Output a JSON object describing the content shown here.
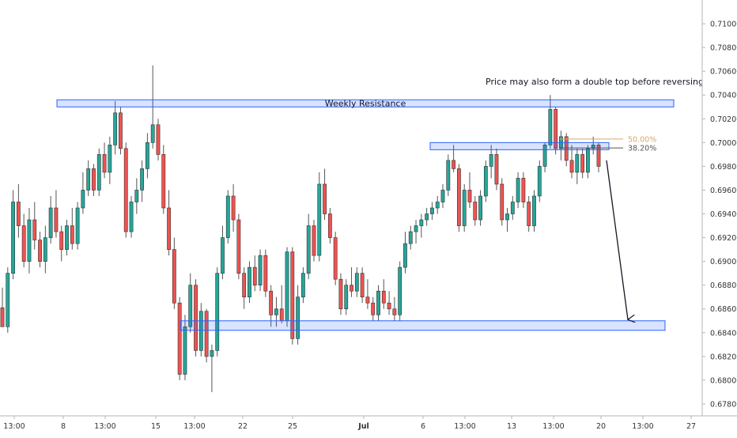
{
  "chart_data": {
    "type": "candlestick",
    "symbol": "",
    "y_axis": {
      "ylim": [
        0.677,
        0.712
      ],
      "ticks": [
        "0.71000",
        "0.70800",
        "0.70600",
        "0.70400",
        "0.70200",
        "0.70000",
        "0.69800",
        "0.69600",
        "0.69400",
        "0.69200",
        "0.69000",
        "0.68800",
        "0.68600",
        "0.68400",
        "0.68200",
        "0.68000",
        "0.67800"
      ]
    },
    "x_axis": {
      "ticks": [
        "13:00",
        "8",
        "13:00",
        "15",
        "13:00",
        "22",
        "25",
        "Jul",
        "6",
        "13:00",
        "13",
        "13:00",
        "20",
        "13:00",
        "27"
      ]
    },
    "zones": [
      {
        "label": "Weekly Resistance",
        "low": 0.703,
        "high": 0.7036
      },
      {
        "label": "",
        "low": 0.6994,
        "high": 0.7
      },
      {
        "label": "",
        "low": 0.6842,
        "high": 0.685
      }
    ],
    "fib_levels": [
      {
        "label": "50.00%",
        "value": 0.7003,
        "color": "#d6a868"
      },
      {
        "label": "38.20%",
        "value": 0.69955,
        "color": "#555555"
      }
    ],
    "annotations": [
      {
        "text": "Price may also form a double top before reversing"
      }
    ],
    "arrow": {
      "from_value": 0.6985,
      "to_value": 0.6851
    },
    "colors": {
      "bull": "#26a69a",
      "bear": "#ef5350",
      "zone": "#2962ff",
      "axis_text": "#333333"
    },
    "grid": false,
    "candles": [
      [
        0.6861,
        0.6878,
        0.6848,
        0.6845
      ],
      [
        0.6845,
        0.6895,
        0.684,
        0.689
      ],
      [
        0.689,
        0.696,
        0.6885,
        0.695
      ],
      [
        0.695,
        0.6965,
        0.692,
        0.693
      ],
      [
        0.693,
        0.694,
        0.6895,
        0.69
      ],
      [
        0.69,
        0.6945,
        0.689,
        0.6935
      ],
      [
        0.6935,
        0.695,
        0.691,
        0.6918
      ],
      [
        0.6918,
        0.6925,
        0.6895,
        0.69
      ],
      [
        0.69,
        0.693,
        0.689,
        0.692
      ],
      [
        0.692,
        0.6955,
        0.6915,
        0.6945
      ],
      [
        0.6945,
        0.696,
        0.692,
        0.6925
      ],
      [
        0.6925,
        0.693,
        0.69,
        0.691
      ],
      [
        0.691,
        0.6935,
        0.6905,
        0.693
      ],
      [
        0.693,
        0.6945,
        0.691,
        0.6915
      ],
      [
        0.6915,
        0.695,
        0.691,
        0.6945
      ],
      [
        0.6945,
        0.6975,
        0.694,
        0.696
      ],
      [
        0.696,
        0.6985,
        0.6955,
        0.6978
      ],
      [
        0.6978,
        0.6982,
        0.6955,
        0.696
      ],
      [
        0.696,
        0.6995,
        0.6955,
        0.699
      ],
      [
        0.699,
        0.7,
        0.697,
        0.6975
      ],
      [
        0.6975,
        0.7005,
        0.6965,
        0.6998
      ],
      [
        0.6998,
        0.7035,
        0.699,
        0.7025
      ],
      [
        0.7025,
        0.703,
        0.699,
        0.6995
      ],
      [
        0.6995,
        0.7,
        0.692,
        0.6925
      ],
      [
        0.6925,
        0.6955,
        0.692,
        0.695
      ],
      [
        0.695,
        0.697,
        0.694,
        0.696
      ],
      [
        0.696,
        0.6985,
        0.695,
        0.6978
      ],
      [
        0.6978,
        0.7008,
        0.697,
        0.7
      ],
      [
        0.7,
        0.7065,
        0.6995,
        0.7015
      ],
      [
        0.7015,
        0.702,
        0.6985,
        0.699
      ],
      [
        0.699,
        0.6998,
        0.694,
        0.6945
      ],
      [
        0.6945,
        0.696,
        0.6905,
        0.691
      ],
      [
        0.691,
        0.692,
        0.686,
        0.6865
      ],
      [
        0.6865,
        0.687,
        0.68,
        0.6805
      ],
      [
        0.6805,
        0.6855,
        0.68,
        0.6845
      ],
      [
        0.6845,
        0.689,
        0.684,
        0.688
      ],
      [
        0.688,
        0.6885,
        0.682,
        0.6825
      ],
      [
        0.6825,
        0.6865,
        0.682,
        0.6858
      ],
      [
        0.6858,
        0.686,
        0.6815,
        0.682
      ],
      [
        0.682,
        0.683,
        0.679,
        0.6825
      ],
      [
        0.6825,
        0.6895,
        0.682,
        0.689
      ],
      [
        0.689,
        0.693,
        0.6885,
        0.692
      ],
      [
        0.692,
        0.696,
        0.6915,
        0.6955
      ],
      [
        0.6955,
        0.6965,
        0.6925,
        0.6935
      ],
      [
        0.6935,
        0.694,
        0.6885,
        0.689
      ],
      [
        0.689,
        0.6895,
        0.686,
        0.687
      ],
      [
        0.687,
        0.69,
        0.6865,
        0.6895
      ],
      [
        0.6895,
        0.6905,
        0.6875,
        0.688
      ],
      [
        0.688,
        0.691,
        0.6875,
        0.6905
      ],
      [
        0.6905,
        0.691,
        0.687,
        0.6875
      ],
      [
        0.6875,
        0.688,
        0.6845,
        0.6855
      ],
      [
        0.6855,
        0.687,
        0.6845,
        0.686
      ],
      [
        0.686,
        0.688,
        0.6848,
        0.685
      ],
      [
        0.685,
        0.6912,
        0.6845,
        0.6908
      ],
      [
        0.6908,
        0.6912,
        0.683,
        0.6835
      ],
      [
        0.6835,
        0.688,
        0.683,
        0.687
      ],
      [
        0.687,
        0.6895,
        0.6865,
        0.689
      ],
      [
        0.689,
        0.694,
        0.6885,
        0.693
      ],
      [
        0.693,
        0.6935,
        0.69,
        0.6905
      ],
      [
        0.6905,
        0.6975,
        0.69,
        0.6965
      ],
      [
        0.6965,
        0.6978,
        0.6935,
        0.694
      ],
      [
        0.694,
        0.6945,
        0.6915,
        0.692
      ],
      [
        0.692,
        0.6925,
        0.688,
        0.6885
      ],
      [
        0.6885,
        0.689,
        0.6855,
        0.686
      ],
      [
        0.686,
        0.6885,
        0.6855,
        0.688
      ],
      [
        0.688,
        0.6895,
        0.687,
        0.6875
      ],
      [
        0.6875,
        0.6895,
        0.687,
        0.689
      ],
      [
        0.689,
        0.6895,
        0.6865,
        0.687
      ],
      [
        0.687,
        0.6885,
        0.686,
        0.6865
      ],
      [
        0.6865,
        0.687,
        0.685,
        0.6855
      ],
      [
        0.6855,
        0.688,
        0.685,
        0.6875
      ],
      [
        0.6875,
        0.6885,
        0.686,
        0.6865
      ],
      [
        0.6865,
        0.6875,
        0.6855,
        0.686
      ],
      [
        0.686,
        0.687,
        0.685,
        0.6855
      ],
      [
        0.6855,
        0.69,
        0.685,
        0.6895
      ],
      [
        0.6895,
        0.6925,
        0.689,
        0.6915
      ],
      [
        0.6915,
        0.693,
        0.691,
        0.6925
      ],
      [
        0.6925,
        0.6935,
        0.6915,
        0.693
      ],
      [
        0.693,
        0.694,
        0.692,
        0.6935
      ],
      [
        0.6935,
        0.6945,
        0.693,
        0.694
      ],
      [
        0.694,
        0.695,
        0.6935,
        0.6945
      ],
      [
        0.6945,
        0.6955,
        0.694,
        0.695
      ],
      [
        0.695,
        0.6965,
        0.6945,
        0.696
      ],
      [
        0.696,
        0.699,
        0.6955,
        0.6985
      ],
      [
        0.6985,
        0.6998,
        0.6975,
        0.6978
      ],
      [
        0.6978,
        0.6982,
        0.6925,
        0.693
      ],
      [
        0.693,
        0.6965,
        0.6925,
        0.696
      ],
      [
        0.696,
        0.6975,
        0.6945,
        0.695
      ],
      [
        0.695,
        0.6955,
        0.693,
        0.6935
      ],
      [
        0.6935,
        0.696,
        0.693,
        0.6955
      ],
      [
        0.6955,
        0.6985,
        0.695,
        0.698
      ],
      [
        0.698,
        0.6998,
        0.697,
        0.699
      ],
      [
        0.699,
        0.6995,
        0.696,
        0.6965
      ],
      [
        0.6965,
        0.697,
        0.693,
        0.6935
      ],
      [
        0.6935,
        0.6945,
        0.6925,
        0.694
      ],
      [
        0.694,
        0.6955,
        0.6935,
        0.695
      ],
      [
        0.695,
        0.6975,
        0.6945,
        0.697
      ],
      [
        0.697,
        0.6975,
        0.6945,
        0.695
      ],
      [
        0.695,
        0.6955,
        0.6925,
        0.693
      ],
      [
        0.693,
        0.696,
        0.6925,
        0.6955
      ],
      [
        0.6955,
        0.6985,
        0.695,
        0.698
      ],
      [
        0.698,
        0.7,
        0.6975,
        0.6998
      ],
      [
        0.6998,
        0.704,
        0.6995,
        0.7028
      ],
      [
        0.7028,
        0.703,
        0.699,
        0.6995
      ],
      [
        0.6995,
        0.701,
        0.6985,
        0.7005
      ],
      [
        0.7005,
        0.7008,
        0.698,
        0.6985
      ],
      [
        0.6985,
        0.6998,
        0.697,
        0.6975
      ],
      [
        0.6975,
        0.6995,
        0.6965,
        0.699
      ],
      [
        0.699,
        0.6995,
        0.697,
        0.6975
      ],
      [
        0.6975,
        0.6998,
        0.697,
        0.6995
      ],
      [
        0.6995,
        0.7005,
        0.699,
        0.6998
      ],
      [
        0.6998,
        0.7,
        0.6975,
        0.698
      ]
    ]
  }
}
